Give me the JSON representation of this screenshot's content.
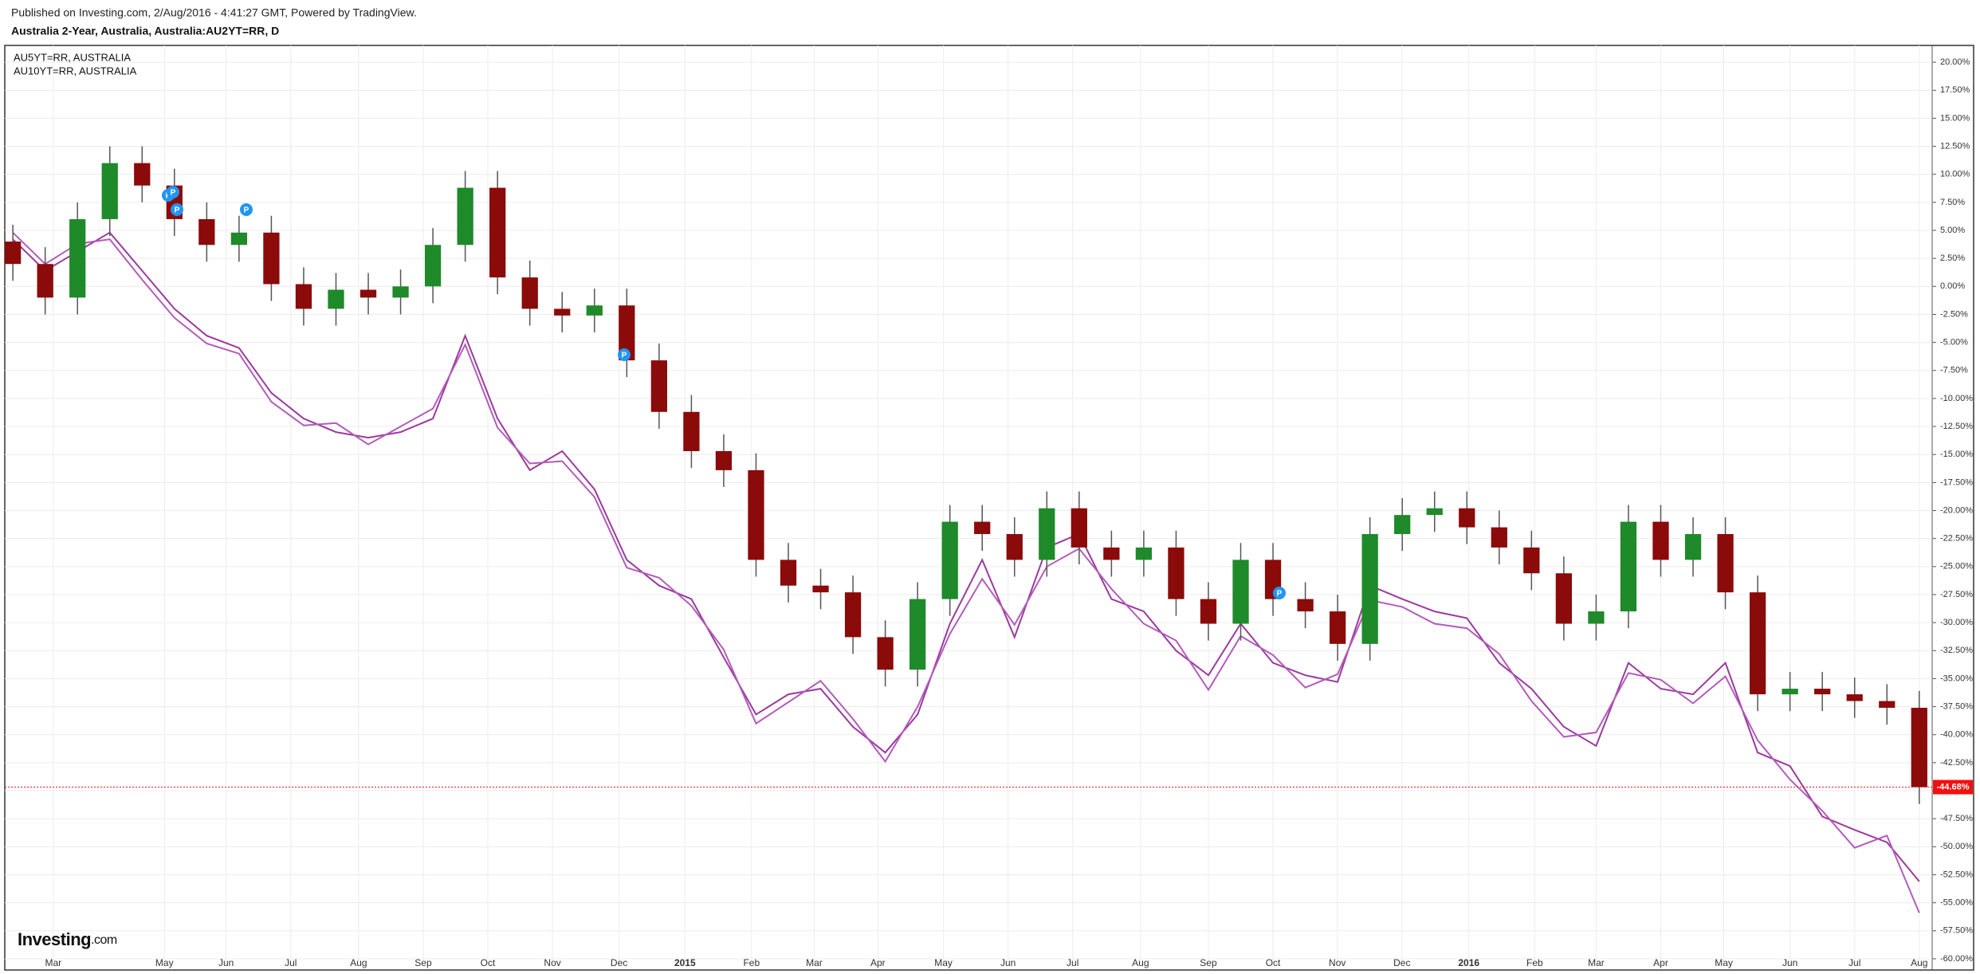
{
  "chart_data": {
    "type": "candlestick",
    "header": "Published on Investing.com, 2/Aug/2016 - 4:41:27 GMT, Powered by TradingView.",
    "title": "Australia 2-Year, Australia, Australia:AU2YT=RR, D",
    "open": [
      4,
      2,
      -1,
      6,
      11,
      9,
      6,
      3.7,
      4.8,
      0.2,
      -2,
      -0.3,
      -1,
      0,
      3.7,
      8.8,
      0.8,
      -2,
      -2.6,
      -1.7,
      -6.6,
      -11.2,
      -14.7,
      -16.4,
      -24.4,
      -26.7,
      -27.3,
      -31.3,
      -34.2,
      -27.9,
      -21,
      -22.1,
      -24.4,
      -19.8,
      -23.3,
      -24.4,
      -23.3,
      -27.9,
      -30.1,
      -24.4,
      -27.9,
      -29,
      -31.9,
      -22.1,
      -20.4,
      -19.8,
      -21.5,
      -23.3,
      -25.6,
      -30.1,
      -29,
      -21,
      -24.4,
      -22.1,
      -27.3,
      -36.4,
      -35.9,
      -36.4,
      -37,
      -37.6
    ],
    "high": [
      5.5,
      3.5,
      7.5,
      12.5,
      12.5,
      10.5,
      7.5,
      6.3,
      6.3,
      1.7,
      1.2,
      1.2,
      1.5,
      5.2,
      10.3,
      10.3,
      2.3,
      -0.5,
      -0.2,
      -0.2,
      -5.1,
      -9.7,
      -13.2,
      -14.9,
      -22.9,
      -25.2,
      -25.8,
      -29.8,
      -26.4,
      -19.5,
      -19.5,
      -20.6,
      -18.3,
      -18.3,
      -21.8,
      -21.8,
      -21.8,
      -26.4,
      -22.9,
      -22.9,
      -26.4,
      -27.5,
      -20.6,
      -18.9,
      -18.3,
      -18.3,
      -20,
      -21.8,
      -24.1,
      -27.5,
      -19.5,
      -19.5,
      -20.6,
      -20.6,
      -25.8,
      -34.4,
      -34.4,
      -34.9,
      -35.5,
      -36.1
    ],
    "low": [
      0.5,
      -2.5,
      -2.5,
      4.5,
      7.5,
      4.5,
      2.2,
      2.2,
      -1.3,
      -3.5,
      -3.5,
      -2.5,
      -2.5,
      -1.5,
      2.2,
      -0.7,
      -3.5,
      -4.1,
      -4.1,
      -8.1,
      -12.7,
      -16.2,
      -17.9,
      -25.9,
      -28.2,
      -28.8,
      -32.8,
      -35.7,
      -35.7,
      -29.4,
      -23.6,
      -25.9,
      -25.9,
      -24.8,
      -25.9,
      -25.9,
      -29.4,
      -31.6,
      -31.6,
      -29.4,
      -30.5,
      -33.4,
      -33.4,
      -23.6,
      -21.9,
      -23,
      -24.8,
      -27.1,
      -31.6,
      -31.6,
      -30.5,
      -25.9,
      -25.9,
      -28.8,
      -37.9,
      -37.9,
      -37.9,
      -38.5,
      -39.1,
      -46.18
    ],
    "close": [
      2,
      -1,
      6,
      11,
      9,
      6,
      3.7,
      4.8,
      0.2,
      -2,
      -0.3,
      -1,
      0,
      3.7,
      8.8,
      0.8,
      -2,
      -2.6,
      -1.7,
      -6.6,
      -11.2,
      -14.7,
      -16.4,
      -24.4,
      -26.7,
      -27.3,
      -31.3,
      -34.2,
      -27.9,
      -21,
      -22.1,
      -24.4,
      -19.8,
      -23.3,
      -24.4,
      -23.3,
      -27.9,
      -30.1,
      -24.4,
      -27.9,
      -29,
      -31.9,
      -22.1,
      -20.4,
      -19.8,
      -21.5,
      -23.3,
      -25.6,
      -30.1,
      -29,
      -21,
      -24.4,
      -22.1,
      -27.3,
      -36.4,
      -35.9,
      -36.4,
      -37,
      -37.6,
      -44.68
    ],
    "up_color": "#1e8a2a",
    "down_color": "#8b0a0a",
    "series": [
      {
        "name": "AU5YT=RR, AUSTRALIA",
        "color": "#9b3a9e",
        "values": [
          4.2,
          1.4,
          3.1,
          4.8,
          1.4,
          -2,
          -4.4,
          -5.5,
          -9.5,
          -11.8,
          -13,
          -13.5,
          -13,
          -11.8,
          -4.4,
          -11.8,
          -16.4,
          -14.7,
          -18.1,
          -24.4,
          -26.7,
          -27.9,
          -33.1,
          -38.2,
          -36.4,
          -35.9,
          -39.3,
          -41.6,
          -38.2,
          -30.1,
          -24.4,
          -31.3,
          -23.3,
          -22.1,
          -27.9,
          -29,
          -32.5,
          -34.7,
          -30.1,
          -33.6,
          -34.7,
          -35.3,
          -26.7,
          -27.9,
          -29,
          -29.6,
          -33.6,
          -35.9,
          -39.3,
          -41,
          -33.6,
          -35.9,
          -36.4,
          -33.6,
          -41.6,
          -42.8,
          -47.3,
          -48.5,
          -49.6,
          -53.1
        ]
      },
      {
        "name": "AU10YT=RR, AUSTRALIA",
        "color": "#b25cba",
        "values": [
          4.8,
          2.0,
          3.8,
          4.2,
          0.6,
          -2.8,
          -5.1,
          -6.0,
          -10.3,
          -12.4,
          -12.2,
          -14.1,
          -12.5,
          -10.9,
          -5.2,
          -12.6,
          -15.8,
          -15.6,
          -18.8,
          -25.1,
          -26.0,
          -28.5,
          -32.4,
          -39.0,
          -37.1,
          -35.2,
          -38.6,
          -42.4,
          -37.5,
          -31.0,
          -26.1,
          -30.2,
          -25.0,
          -23.4,
          -27.0,
          -30.1,
          -31.6,
          -36.0,
          -31.2,
          -32.9,
          -35.8,
          -34.6,
          -28.0,
          -28.6,
          -30.1,
          -30.5,
          -32.8,
          -37.0,
          -40.2,
          -39.8,
          -34.5,
          -35.1,
          -37.2,
          -34.8,
          -40.5,
          -44.0,
          -46.8,
          -50.1,
          -49.0,
          -55.9
        ]
      }
    ],
    "xlim": [
      -0.25,
      59.4
    ],
    "xticks": [
      {
        "value": 1.25,
        "label": "Mar"
      },
      {
        "value": 4.69,
        "label": "May"
      },
      {
        "value": 6.6,
        "label": "Jun"
      },
      {
        "value": 8.6,
        "label": "Jul"
      },
      {
        "value": 10.7,
        "label": "Aug"
      },
      {
        "value": 12.7,
        "label": "Sep"
      },
      {
        "value": 14.7,
        "label": "Oct"
      },
      {
        "value": 16.7,
        "label": "Nov"
      },
      {
        "value": 18.76,
        "label": "Dec"
      },
      {
        "value": 20.8,
        "label": "2015"
      },
      {
        "value": 22.86,
        "label": "Feb"
      },
      {
        "value": 24.8,
        "label": "Mar"
      },
      {
        "value": 26.77,
        "label": "Apr"
      },
      {
        "value": 28.8,
        "label": "May"
      },
      {
        "value": 30.8,
        "label": "Jun"
      },
      {
        "value": 32.8,
        "label": "Jul"
      },
      {
        "value": 34.9,
        "label": "Aug"
      },
      {
        "value": 37.0,
        "label": "Sep"
      },
      {
        "value": 39.0,
        "label": "Oct"
      },
      {
        "value": 40.99,
        "label": "Nov"
      },
      {
        "value": 42.99,
        "label": "Dec"
      },
      {
        "value": 45.06,
        "label": "2016"
      },
      {
        "value": 47.1,
        "label": "Feb"
      },
      {
        "value": 49.0,
        "label": "Mar"
      },
      {
        "value": 51.0,
        "label": "Apr"
      },
      {
        "value": 52.95,
        "label": "May"
      },
      {
        "value": 55.0,
        "label": "Jun"
      },
      {
        "value": 57.0,
        "label": "Jul"
      },
      {
        "value": 59.0,
        "label": "Aug"
      }
    ],
    "ylim": [
      -61,
      21.5
    ],
    "yticks": [
      {
        "value": 20,
        "label": "20.00%"
      },
      {
        "value": 17.5,
        "label": "17.50%"
      },
      {
        "value": 15,
        "label": "15.00%"
      },
      {
        "value": 12.5,
        "label": "12.50%"
      },
      {
        "value": 10,
        "label": "10.00%"
      },
      {
        "value": 7.5,
        "label": "7.50%"
      },
      {
        "value": 5,
        "label": "5.00%"
      },
      {
        "value": 2.5,
        "label": "2.50%"
      },
      {
        "value": 0,
        "label": "0.00%"
      },
      {
        "value": -2.5,
        "label": "-2.50%"
      },
      {
        "value": -5,
        "label": "-5.00%"
      },
      {
        "value": -7.5,
        "label": "-7.50%"
      },
      {
        "value": -10,
        "label": "-10.00%"
      },
      {
        "value": -12.5,
        "label": "-12.50%"
      },
      {
        "value": -15,
        "label": "-15.00%"
      },
      {
        "value": -17.5,
        "label": "-17.50%"
      },
      {
        "value": -20,
        "label": "-20.00%"
      },
      {
        "value": -22.5,
        "label": "-22.50%"
      },
      {
        "value": -25,
        "label": "-25.00%"
      },
      {
        "value": -27.5,
        "label": "-27.50%"
      },
      {
        "value": -30,
        "label": "-30.00%"
      },
      {
        "value": -32.5,
        "label": "-32.50%"
      },
      {
        "value": -35,
        "label": "-35.00%"
      },
      {
        "value": -37.5,
        "label": "-37.50%"
      },
      {
        "value": -40,
        "label": "-40.00%"
      },
      {
        "value": -42.5,
        "label": "-42.50%"
      },
      {
        "value": -45,
        "label": "-45.00%"
      },
      {
        "value": -47.5,
        "label": "-47.50%"
      },
      {
        "value": -50,
        "label": "-50.00%"
      },
      {
        "value": -52.5,
        "label": "-52.50%"
      },
      {
        "value": -55,
        "label": "-55.00%"
      },
      {
        "value": -57.5,
        "label": "-57.50%"
      },
      {
        "value": -60,
        "label": "-60.00%"
      }
    ],
    "grid": true,
    "last_value": -44.68,
    "last_label": "-44.68%",
    "last_color": "#f01010",
    "event_label": "P",
    "logo": "Investing",
    "logo_suffix": ".com"
  }
}
